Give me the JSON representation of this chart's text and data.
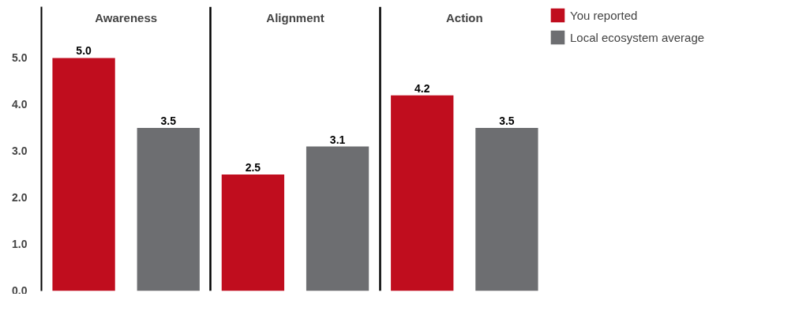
{
  "chart_data": {
    "type": "bar",
    "categories": [
      "Awareness",
      "Alignment",
      "Action"
    ],
    "series": [
      {
        "name": "You reported",
        "color": "#c00d1e",
        "values": [
          5.0,
          2.5,
          4.2
        ],
        "value_labels": [
          "5.0",
          "2.5",
          "4.2"
        ]
      },
      {
        "name": "Local ecosystem average",
        "color": "#6d6e71",
        "values": [
          3.5,
          3.1,
          3.5
        ],
        "value_labels": [
          "3.5",
          "3.1",
          "3.5"
        ]
      }
    ],
    "ylim": [
      0,
      6.1
    ],
    "yticks": [
      {
        "value": 0,
        "label": "0.0"
      },
      {
        "value": 1,
        "label": "1.0"
      },
      {
        "value": 2,
        "label": "2.0"
      },
      {
        "value": 3,
        "label": "3.0"
      },
      {
        "value": 4,
        "label": "4.0"
      },
      {
        "value": 5,
        "label": "5.0"
      }
    ],
    "grid": "x",
    "legend": "top right"
  }
}
